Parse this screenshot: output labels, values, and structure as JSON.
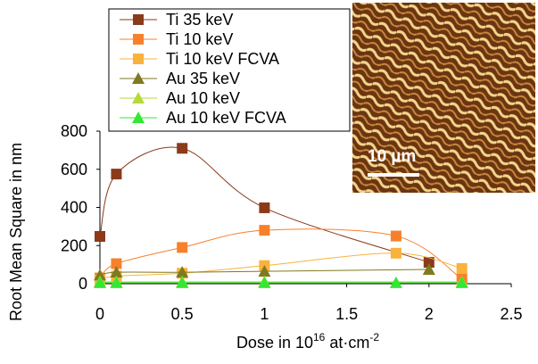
{
  "chart_data": {
    "type": "line",
    "y_label": "Root Mean Square in nm",
    "x_label_parts": [
      "Dose in 10",
      "16",
      " at·cm",
      "-2"
    ],
    "inset_label": "10 µm",
    "xlim": [
      0,
      2.5
    ],
    "xticks": [
      0,
      0.5,
      1,
      1.5,
      2,
      2.5
    ],
    "ylim": [
      0,
      800
    ],
    "yticks": [
      0,
      200,
      400,
      600,
      800
    ],
    "series": [
      {
        "name": "Ti 35 keV",
        "color": "#8b3a1a",
        "marker": "square",
        "x": [
          0,
          0.1,
          0.5,
          1,
          2
        ],
        "values": [
          248,
          575,
          710,
          398,
          112
        ]
      },
      {
        "name": "Ti 10 keV",
        "color": "#f7802b",
        "marker": "square",
        "x": [
          0,
          0.1,
          0.5,
          1,
          1.8,
          2.2
        ],
        "values": [
          30,
          105,
          190,
          280,
          250,
          25
        ]
      },
      {
        "name": "Ti 10 keV FCVA",
        "color": "#f9b23c",
        "marker": "square",
        "x": [
          0,
          0.1,
          0.5,
          1,
          1.8,
          2.2
        ],
        "values": [
          20,
          40,
          55,
          95,
          160,
          80
        ]
      },
      {
        "name": "Au 35 keV",
        "color": "#7f7a1f",
        "marker": "triangle",
        "x": [
          0,
          0.1,
          0.5,
          1,
          2
        ],
        "values": [
          45,
          60,
          60,
          65,
          75
        ]
      },
      {
        "name": "Au 10 keV",
        "color": "#b6d83a",
        "marker": "triangle",
        "x": [
          0,
          0.1,
          0.5,
          1,
          2.2
        ],
        "values": [
          10,
          10,
          10,
          10,
          10
        ]
      },
      {
        "name": "Au 10 keV FCVA",
        "color": "#33e833",
        "marker": "triangle",
        "x": [
          0,
          0.1,
          0.5,
          1,
          1.8,
          2.2
        ],
        "values": [
          5,
          5,
          5,
          5,
          5,
          5
        ]
      }
    ]
  }
}
